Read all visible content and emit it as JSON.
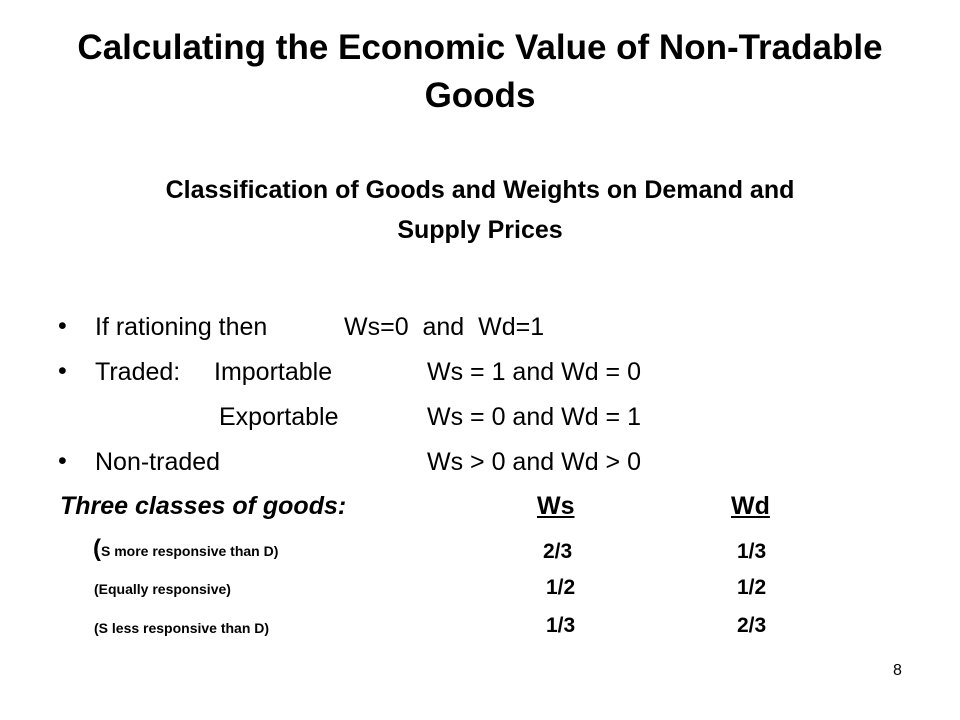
{
  "slide": {
    "title_line1": "Calculating the Economic Value of Non-Tradable",
    "title_line2": "Goods",
    "subtitle_line1": "Classification of Goods and Weights on Demand and",
    "subtitle_line2": "Supply Prices",
    "bullets": {
      "b1_label": "If rationing then",
      "b1_value": "Ws=0  and  Wd=1",
      "b2_label": "Traded:",
      "b2_sub": "Importable",
      "b2_value": "Ws = 1 and Wd = 0",
      "b3_sub": "Exportable",
      "b3_value": "Ws = 0 and Wd = 1",
      "b4_label": "Non-traded",
      "b4_value": "Ws > 0 and Wd > 0",
      "bullet_char": "•"
    },
    "classes": {
      "heading": "Three classes of goods:",
      "col_ws": "Ws",
      "col_wd": "Wd",
      "rows": [
        {
          "paren": "(",
          "label": "S more responsive than D)",
          "ws": "2/3",
          "wd": "1/3"
        },
        {
          "paren": "",
          "label": "(Equally responsive)",
          "ws": "1/2",
          "wd": "1/2"
        },
        {
          "paren": "",
          "label": "(S less responsive than D)",
          "ws": "1/3",
          "wd": "2/3"
        }
      ]
    },
    "page_number": "8"
  }
}
